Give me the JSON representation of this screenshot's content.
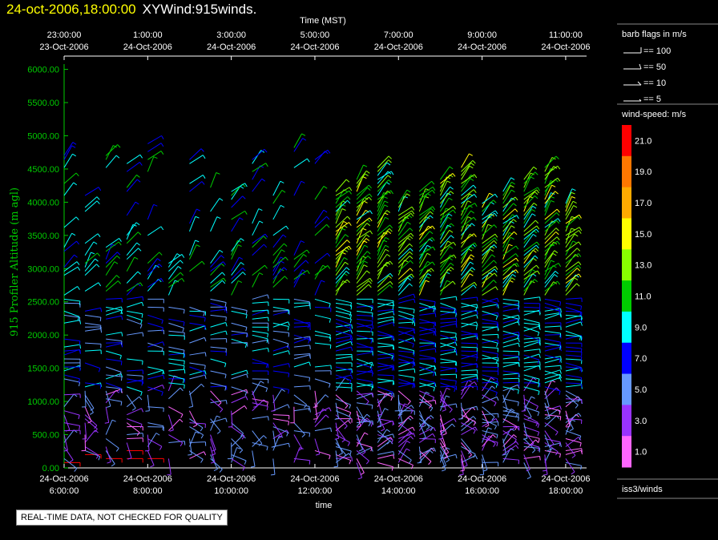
{
  "header": {
    "date_time": "24-oct-2006,18:00:00",
    "product": "XYWind:915winds."
  },
  "note": "REAL-TIME DATA, NOT CHECKED FOR QUALITY",
  "chart_data": {
    "type": "wind-barb profile",
    "top_axis": {
      "label": "Time (MST)",
      "ticks": [
        {
          "time": "23:00:00",
          "date": "23-Oct-2006"
        },
        {
          "time": "1:00:00",
          "date": "24-Oct-2006"
        },
        {
          "time": "3:00:00",
          "date": "24-Oct-2006"
        },
        {
          "time": "5:00:00",
          "date": "24-Oct-2006"
        },
        {
          "time": "7:00:00",
          "date": "24-Oct-2006"
        },
        {
          "time": "9:00:00",
          "date": "24-Oct-2006"
        },
        {
          "time": "11:00:00",
          "date": "24-Oct-2006"
        }
      ]
    },
    "bottom_axis": {
      "label": "time",
      "ticks": [
        {
          "date": "24-Oct-2006",
          "time": "6:00:00"
        },
        {
          "date": "24-Oct-2006",
          "time": "8:00:00"
        },
        {
          "date": "24-Oct-2006",
          "time": "10:00:00"
        },
        {
          "date": "24-Oct-2006",
          "time": "12:00:00"
        },
        {
          "date": "24-Oct-2006",
          "time": "14:00:00"
        },
        {
          "date": "24-Oct-2006",
          "time": "16:00:00"
        },
        {
          "date": "24-Oct-2006",
          "time": "18:00:00"
        }
      ],
      "range_hours": [
        6.0,
        18.5
      ]
    },
    "y_axis": {
      "label": "915 Profiler Altitude (m agl)",
      "ticks": [
        "0.00",
        "500.00",
        "1000.00",
        "1500.00",
        "2000.00",
        "2500.00",
        "3000.00",
        "3500.00",
        "4000.00",
        "4500.00",
        "5000.00",
        "5500.00",
        "6000.00"
      ],
      "range": [
        0,
        6200
      ]
    },
    "barb_legend": {
      "title": "barb flags in m/s",
      "items": [
        "== 100",
        "== 50",
        "== 10",
        "== 5"
      ]
    },
    "speed_legend": {
      "title": "wind-speed: m/s",
      "items": [
        {
          "label": "21.0",
          "color": "#ff0000"
        },
        {
          "label": "19.0",
          "color": "#ff7700"
        },
        {
          "label": "17.0",
          "color": "#ffaa00"
        },
        {
          "label": "15.0",
          "color": "#ffff00"
        },
        {
          "label": "13.0",
          "color": "#88ff00"
        },
        {
          "label": "11.0",
          "color": "#00cc00"
        },
        {
          "label": "9.0",
          "color": "#00ffff"
        },
        {
          "label": "7.0",
          "color": "#0000ff"
        },
        {
          "label": "5.0",
          "color": "#6699ff"
        },
        {
          "label": "3.0",
          "color": "#9933ff"
        },
        {
          "label": "1.0",
          "color": "#ff66ff"
        }
      ]
    },
    "station": "iss3/winds",
    "profile_times": [
      6.0,
      6.5,
      7.0,
      7.5,
      8.0,
      8.5,
      9.0,
      9.5,
      10.0,
      10.5,
      11.0,
      11.5,
      12.0,
      12.5,
      13.0,
      13.5,
      14.0,
      14.5,
      15.0,
      15.5,
      16.0,
      16.5,
      17.0,
      17.5,
      18.0
    ],
    "colors": {
      "axis": "#00cc00",
      "y_label": "#00cc00",
      "frame": "#ffffff"
    }
  }
}
